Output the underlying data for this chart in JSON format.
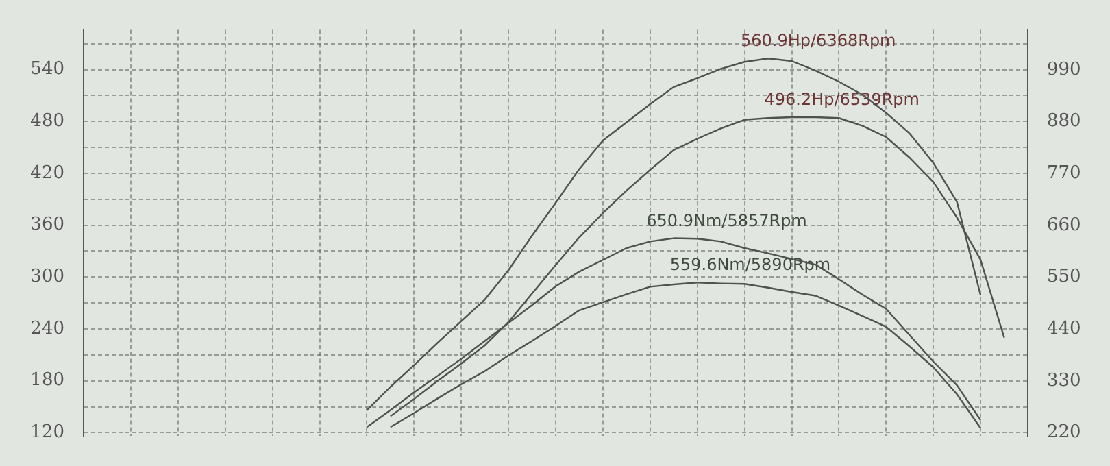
{
  "chart_data": {
    "type": "line",
    "categories": [
      null,
      null,
      null,
      null,
      null,
      null,
      null,
      null,
      null,
      null,
      null,
      null,
      null,
      null,
      null,
      null,
      null,
      null,
      null,
      null,
      null,
      null,
      null,
      null,
      null,
      null,
      null,
      null,
      null,
      null,
      null,
      null,
      null,
      null,
      null,
      null,
      null,
      null,
      null,
      null,
      null
    ],
    "series": [
      {
        "color": "#4f524f",
        "values": [
          null,
          null,
          null,
          null,
          null,
          null,
          null,
          null,
          null,
          null,
          null,
          null,
          146,
          173,
          198,
          224,
          249,
          274,
          308,
          348,
          386,
          425,
          458,
          479,
          500,
          520,
          530,
          541,
          549,
          553,
          550,
          539,
          526,
          511,
          490,
          466,
          432,
          387,
          279,
          null,
          null
        ]
      },
      {
        "color": "#4f524f",
        "values": [
          null,
          null,
          null,
          null,
          null,
          null,
          null,
          null,
          null,
          null,
          null,
          null,
          null,
          139,
          159,
          180,
          200,
          221,
          248,
          281,
          314,
          346,
          374,
          400,
          424,
          447,
          460,
          472,
          482,
          484,
          485,
          485,
          484,
          475,
          462,
          438,
          410,
          369,
          320,
          230,
          null
        ]
      },
      {
        "color": "#4f524f",
        "axis": "y2",
        "values": [
          null,
          null,
          null,
          null,
          null,
          null,
          null,
          null,
          null,
          null,
          null,
          null,
          232,
          268,
          306,
          341,
          377,
          415,
          453,
          491,
          531,
          562,
          587,
          612,
          626,
          633,
          632,
          626,
          612,
          601,
          589,
          577,
          546,
          513,
          483,
          427,
          371,
          321,
          247,
          null,
          null
        ]
      },
      {
        "color": "#4f524f",
        "axis": "y2",
        "values": [
          null,
          null,
          null,
          null,
          null,
          null,
          null,
          null,
          null,
          null,
          null,
          null,
          null,
          232,
          262,
          293,
          323,
          351,
          384,
          415,
          447,
          480,
          497,
          514,
          530,
          535,
          539,
          537,
          536,
          528,
          519,
          511,
          490,
          468,
          445,
          403,
          359,
          302,
          230,
          null,
          null
        ]
      }
    ],
    "annotations": [
      "560.9Hp/6368Rpm",
      "496.2Hp/6539Rpm",
      "650.9Nm/5857Rpm",
      "559.6Nm/5890Rpm"
    ],
    "ylim": [
      116,
      586
    ],
    "yticks": [
      120,
      {
        "value": 150,
        "label": null
      },
      180,
      {
        "value": 210,
        "label": null
      },
      240,
      {
        "value": 270,
        "label": null
      },
      300,
      {
        "value": 330,
        "label": null
      },
      360,
      {
        "value": 390,
        "label": null
      },
      420,
      {
        "value": 450,
        "label": null
      },
      480,
      {
        "value": 510,
        "label": null
      },
      540,
      {
        "value": 570,
        "label": null
      }
    ],
    "y2lim": [
      213,
      1075
    ],
    "y2ticks": [
      220,
      330,
      440,
      550,
      660,
      770,
      880,
      990
    ],
    "grid": true,
    "legend": false,
    "marker": "none",
    "line_style": "solid",
    "tick_labels": "y"
  }
}
